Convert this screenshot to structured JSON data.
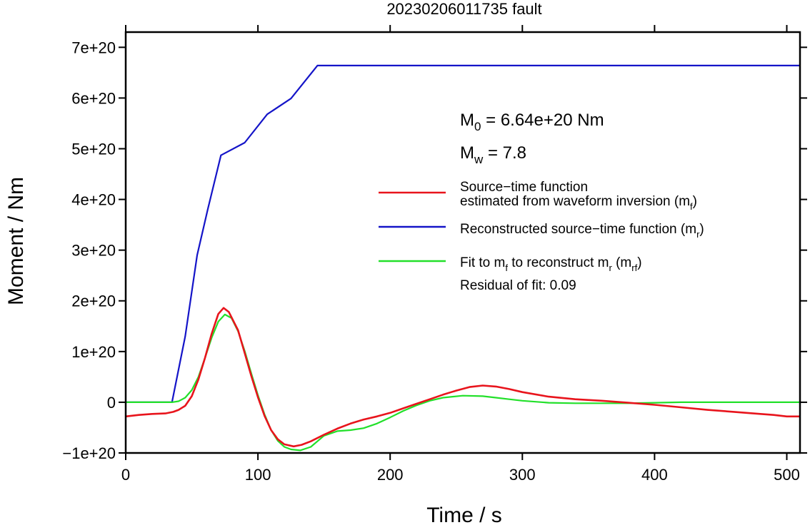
{
  "chart_data": {
    "type": "line",
    "title": "20230206011735 fault",
    "xlabel": "Time / s",
    "ylabel": "Moment / Nm",
    "xlim": [
      0,
      510
    ],
    "ylim": [
      -1e+20,
      7.3e+20
    ],
    "x_ticks": [
      0,
      100,
      200,
      300,
      400,
      500
    ],
    "x_tick_labels": [
      "0",
      "100",
      "200",
      "300",
      "400",
      "500"
    ],
    "y_ticks": [
      -1e+20,
      0,
      1e+20,
      2e+20,
      3e+20,
      4e+20,
      5e+20,
      6e+20,
      7e+20
    ],
    "y_tick_labels": [
      "−1e+20",
      "0",
      "1e+20",
      "2e+20",
      "3e+20",
      "4e+20",
      "5e+20",
      "6e+20",
      "7e+20"
    ],
    "grid": false,
    "legend_position": "right",
    "annotations": {
      "m0": {
        "base": "M",
        "sub": "0",
        "rest": " = 6.64e+20 Nm"
      },
      "mw": {
        "base": "M",
        "sub": "w",
        "rest": " = 7.8"
      },
      "residual": "Residual of fit: 0.09"
    },
    "series": [
      {
        "key": "mf",
        "color": "#e8141c",
        "legend_lines": [
          [
            {
              "t": "Source−time function"
            }
          ],
          [
            {
              "t": "estimated from waveform inversion (m"
            },
            {
              "t": "f",
              "sub": true
            },
            {
              "t": ")"
            }
          ]
        ],
        "x": [
          0,
          10,
          20,
          30,
          36,
          40,
          45,
          50,
          55,
          60,
          65,
          70,
          74,
          78,
          85,
          90,
          95,
          100,
          105,
          110,
          115,
          120,
          127,
          133,
          140,
          150,
          160,
          170,
          180,
          190,
          200,
          210,
          220,
          230,
          240,
          250,
          260,
          270,
          280,
          290,
          300,
          320,
          340,
          360,
          380,
          400,
          420,
          440,
          460,
          480,
          490,
          500,
          510
        ],
        "y": [
          -2.8e+19,
          -2.5e+19,
          -2.3e+19,
          -2.2e+19,
          -1.9e+19,
          -1.5e+19,
          -7e+18,
          1.2e+19,
          4.5e+19,
          8.8e+19,
          1.35e+20,
          1.74e+20,
          1.86e+20,
          1.78e+20,
          1.42e+20,
          9.7e+19,
          5.2e+19,
          1e+19,
          -2.7e+19,
          -5.5e+19,
          -7.3e+19,
          -8.3e+19,
          -8.7e+19,
          -8.4e+19,
          -7.7e+19,
          -6.4e+19,
          -5.2e+19,
          -4.2e+19,
          -3.4e+19,
          -2.8e+19,
          -2.1e+19,
          -1.2e+19,
          -3e+18,
          6e+18,
          1.5e+19,
          2.3e+19,
          3e+19,
          3.3e+19,
          3.1e+19,
          2.6e+19,
          2e+19,
          1.1e+19,
          6e+18,
          3e+18,
          -1e+18,
          -5e+18,
          -1e+19,
          -1.5e+19,
          -1.9e+19,
          -2.3e+19,
          -2.5e+19,
          -2.8e+19,
          -2.8e+19
        ]
      },
      {
        "key": "mr",
        "color": "#1414c8",
        "legend_lines": [
          [
            {
              "t": "Reconstructed source−time function (m"
            },
            {
              "t": "r",
              "sub": true
            },
            {
              "t": ")"
            }
          ]
        ],
        "x": [
          0,
          35,
          45,
          54,
          62,
          72,
          90,
          107,
          125,
          145,
          510
        ],
        "y": [
          0,
          0,
          1.3e+20,
          2.9e+20,
          3.8e+20,
          4.87e+20,
          5.12e+20,
          5.68e+20,
          5.99e+20,
          6.64e+20,
          6.64e+20
        ]
      },
      {
        "key": "mrf",
        "color": "#22e02a",
        "legend_lines": [
          [
            {
              "t": "Fit to m"
            },
            {
              "t": "f",
              "sub": true
            },
            {
              "t": " to reconstruct m"
            },
            {
              "t": "r",
              "sub": true
            },
            {
              "t": " (m"
            },
            {
              "t": "rf",
              "sub": true
            },
            {
              "t": ")"
            }
          ]
        ],
        "x": [
          0,
          35,
          40,
          45,
          50,
          55,
          60,
          65,
          70,
          75,
          80,
          85,
          90,
          95,
          100,
          105,
          110,
          115,
          120,
          125,
          132,
          140,
          150,
          160,
          170,
          180,
          190,
          200,
          210,
          220,
          230,
          240,
          255,
          270,
          280,
          290,
          300,
          320,
          340,
          360,
          380,
          400,
          420,
          450,
          480,
          510
        ],
        "y": [
          0,
          0,
          2e+18,
          9e+18,
          2.4e+19,
          5e+19,
          8.8e+19,
          1.27e+20,
          1.59e+20,
          1.73e+20,
          1.66e+20,
          1.4e+20,
          1.01e+20,
          5.7e+19,
          1.4e+19,
          -2.4e+19,
          -5.5e+19,
          -7.6e+19,
          -8.8e+19,
          -9.3e+19,
          -9.5e+19,
          -8.8e+19,
          -6.6e+19,
          -5.7e+19,
          -5.5e+19,
          -5.1e+19,
          -4.2e+19,
          -3e+19,
          -1.7e+19,
          -6e+18,
          3e+18,
          9e+18,
          1.3e+19,
          1.2e+19,
          9e+18,
          6e+18,
          3e+18,
          -1e+18,
          -2e+18,
          -2e+18,
          -2e+18,
          -1e+18,
          0,
          0,
          0,
          0
        ]
      }
    ]
  }
}
